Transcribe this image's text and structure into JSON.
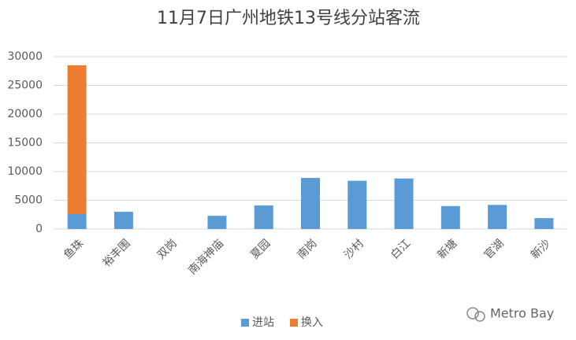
{
  "chart_data": {
    "type": "stacked_bar",
    "title": "11月7日广州地铁13号线分站客流",
    "categories": [
      "鱼珠",
      "裕丰围",
      "双岗",
      "南海神庙",
      "夏园",
      "南岗",
      "沙村",
      "白江",
      "新塘",
      "官湖",
      "新沙"
    ],
    "series": [
      {
        "name": "进站",
        "color": "#5b9bd5",
        "values": [
          2600,
          3000,
          0,
          2300,
          4100,
          8900,
          8400,
          8800,
          4000,
          4200,
          1900
        ]
      },
      {
        "name": "换入",
        "color": "#ed7d31",
        "values": [
          25900,
          0,
          0,
          0,
          0,
          0,
          0,
          0,
          0,
          0,
          0
        ]
      }
    ],
    "ylim": [
      0,
      30000
    ],
    "yticks": [
      0,
      5000,
      10000,
      15000,
      20000,
      25000,
      30000
    ],
    "grid": true,
    "legend": "bottom",
    "watermark": "Metro Bay"
  }
}
